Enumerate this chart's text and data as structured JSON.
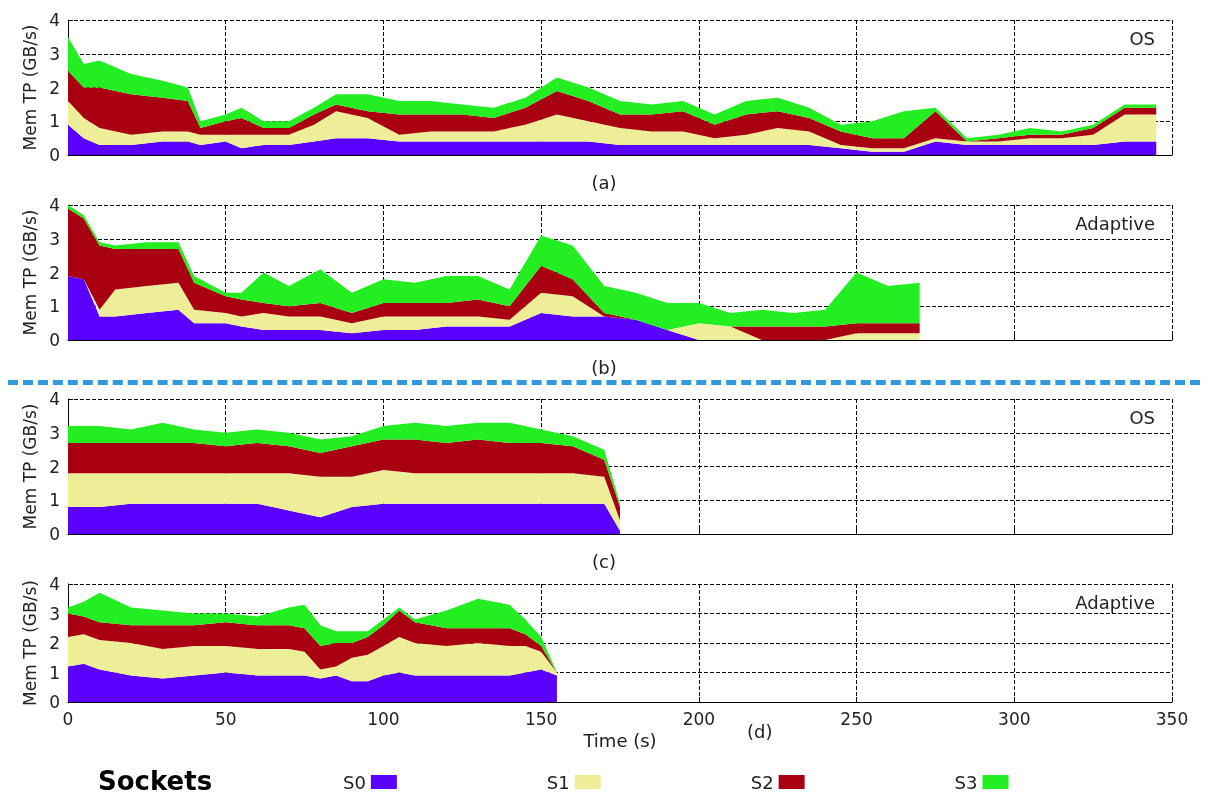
{
  "chart_data": [
    {
      "type": "area",
      "stacked": true,
      "title": "OS",
      "ylabel": "Mem TP (GB/s)",
      "annotations": [
        "(a)"
      ],
      "xlim": [
        0,
        350
      ],
      "xticks": [
        0,
        50,
        100,
        150,
        200,
        250,
        300,
        350
      ],
      "ylim": [
        0,
        4
      ],
      "yticks": [
        0,
        1,
        2,
        3,
        4
      ],
      "grid": true,
      "tick_labels": "y",
      "x": [
        0,
        5,
        10,
        20,
        30,
        38,
        42,
        50,
        55,
        62,
        70,
        78,
        85,
        95,
        105,
        115,
        125,
        135,
        145,
        155,
        165,
        175,
        185,
        195,
        205,
        215,
        225,
        235,
        245,
        255,
        265,
        275,
        285,
        295,
        305,
        315,
        325,
        335,
        345
      ],
      "series": [
        {
          "color": "#5a00ff",
          "values": [
            0.9,
            0.5,
            0.3,
            0.3,
            0.4,
            0.4,
            0.3,
            0.4,
            0.2,
            0.3,
            0.3,
            0.4,
            0.5,
            0.5,
            0.4,
            0.4,
            0.4,
            0.4,
            0.4,
            0.4,
            0.4,
            0.3,
            0.3,
            0.3,
            0.3,
            0.3,
            0.3,
            0.3,
            0.2,
            0.1,
            0.1,
            0.4,
            0.3,
            0.3,
            0.3,
            0.3,
            0.3,
            0.4,
            0.4
          ]
        },
        {
          "color": "#eeee99",
          "values": [
            0.7,
            0.6,
            0.5,
            0.3,
            0.3,
            0.3,
            0.3,
            0.2,
            0.4,
            0.3,
            0.3,
            0.5,
            0.8,
            0.6,
            0.2,
            0.3,
            0.3,
            0.3,
            0.5,
            0.8,
            0.6,
            0.5,
            0.4,
            0.4,
            0.2,
            0.3,
            0.5,
            0.4,
            0.1,
            0.1,
            0.1,
            0.1,
            0.1,
            0.1,
            0.2,
            0.2,
            0.3,
            0.8,
            0.8
          ]
        },
        {
          "color": "#a80010",
          "values": [
            0.9,
            0.9,
            1.2,
            1.2,
            1.0,
            0.9,
            0.2,
            0.4,
            0.5,
            0.2,
            0.2,
            0.3,
            0.2,
            0.2,
            0.6,
            0.5,
            0.5,
            0.4,
            0.5,
            0.7,
            0.6,
            0.4,
            0.5,
            0.6,
            0.4,
            0.6,
            0.5,
            0.4,
            0.4,
            0.3,
            0.3,
            0.8,
            0.0,
            0.1,
            0.1,
            0.1,
            0.2,
            0.2,
            0.2
          ]
        },
        {
          "color": "#22ee22",
          "values": [
            1.0,
            0.7,
            0.8,
            0.6,
            0.5,
            0.4,
            0.2,
            0.2,
            0.3,
            0.2,
            0.2,
            0.2,
            0.3,
            0.5,
            0.4,
            0.4,
            0.3,
            0.3,
            0.3,
            0.4,
            0.4,
            0.4,
            0.3,
            0.3,
            0.3,
            0.4,
            0.4,
            0.3,
            0.2,
            0.5,
            0.8,
            0.1,
            0.1,
            0.1,
            0.2,
            0.1,
            0.1,
            0.1,
            0.1
          ]
        }
      ]
    },
    {
      "type": "area",
      "stacked": true,
      "title": "Adaptive",
      "ylabel": "Mem TP (GB/s)",
      "annotations": [
        "(b)"
      ],
      "xlim": [
        0,
        350
      ],
      "xticks": [
        0,
        50,
        100,
        150,
        200,
        250,
        300,
        350
      ],
      "ylim": [
        0,
        4
      ],
      "yticks": [
        0,
        1,
        2,
        3,
        4
      ],
      "grid": true,
      "tick_labels": "y",
      "x": [
        0,
        5,
        10,
        15,
        25,
        35,
        40,
        50,
        55,
        62,
        70,
        80,
        90,
        100,
        110,
        120,
        130,
        140,
        150,
        160,
        170,
        180,
        190,
        200,
        210,
        220,
        230,
        240,
        250,
        260,
        270
      ],
      "series": [
        {
          "color": "#5a00ff",
          "values": [
            1.9,
            1.8,
            0.7,
            0.7,
            0.8,
            0.9,
            0.5,
            0.5,
            0.4,
            0.3,
            0.3,
            0.3,
            0.2,
            0.3,
            0.3,
            0.4,
            0.4,
            0.4,
            0.8,
            0.7,
            0.7,
            0.6,
            0.3,
            0,
            0,
            0,
            0,
            0,
            0,
            0,
            0
          ]
        },
        {
          "color": "#eeee99",
          "values": [
            null,
            null,
            0.2,
            0.8,
            0.8,
            0.8,
            0.4,
            0.3,
            0.3,
            0.5,
            0.4,
            0.4,
            0.3,
            0.4,
            0.4,
            0.3,
            0.3,
            0.2,
            0.6,
            0.6,
            0,
            0,
            0,
            0.5,
            0.4,
            0,
            0,
            0,
            0.2,
            0.2,
            0.2
          ]
        },
        {
          "color": "#a80010",
          "values": [
            2.0,
            1.8,
            1.9,
            1.2,
            1.1,
            1.0,
            0.8,
            0.5,
            0.5,
            0.3,
            0.3,
            0.4,
            0.3,
            0.4,
            0.4,
            0.4,
            0.5,
            0.4,
            0.8,
            0.5,
            0.1,
            0,
            0,
            0,
            0,
            0.4,
            0.4,
            0.4,
            0.3,
            0.3,
            0.3
          ]
        },
        {
          "color": "#22ee22",
          "values": [
            0.1,
            0.1,
            0.1,
            0.1,
            0.2,
            0.2,
            0.2,
            0.1,
            0.2,
            0.9,
            0.6,
            1.0,
            0.6,
            0.7,
            0.6,
            0.8,
            0.7,
            0.5,
            0.9,
            1.0,
            0.8,
            0.8,
            0.8,
            0.6,
            0.4,
            0.5,
            0.4,
            0.5,
            1.5,
            1.1,
            1.2
          ]
        }
      ]
    },
    {
      "type": "area",
      "stacked": true,
      "title": "OS",
      "ylabel": "Mem TP (GB/s)",
      "annotations": [
        "(c)"
      ],
      "xlim": [
        0,
        350
      ],
      "xticks": [
        0,
        50,
        100,
        150,
        200,
        250,
        300,
        350
      ],
      "ylim": [
        0,
        4
      ],
      "yticks": [
        0,
        1,
        2,
        3,
        4
      ],
      "grid": true,
      "tick_labels": "y",
      "x": [
        0,
        10,
        20,
        30,
        40,
        50,
        60,
        70,
        80,
        90,
        100,
        110,
        120,
        130,
        140,
        150,
        160,
        170,
        175
      ],
      "series": [
        {
          "color": "#5a00ff",
          "values": [
            0.8,
            0.8,
            0.9,
            0.9,
            0.9,
            0.9,
            0.9,
            0.7,
            0.5,
            0.8,
            0.9,
            0.9,
            0.9,
            0.9,
            0.9,
            0.9,
            0.9,
            0.9,
            0.1
          ]
        },
        {
          "color": "#eeee99",
          "values": [
            1.0,
            1.0,
            0.9,
            0.9,
            0.9,
            0.9,
            0.9,
            1.1,
            1.2,
            0.9,
            1.0,
            0.9,
            0.9,
            0.9,
            0.9,
            0.9,
            0.9,
            0.8,
            0.3
          ]
        },
        {
          "color": "#a80010",
          "values": [
            0.9,
            0.9,
            0.9,
            0.9,
            0.9,
            0.8,
            0.9,
            0.8,
            0.7,
            0.9,
            0.9,
            1.0,
            0.9,
            1.0,
            0.9,
            0.9,
            0.8,
            0.5,
            0.4
          ]
        },
        {
          "color": "#22ee22",
          "values": [
            0.5,
            0.5,
            0.4,
            0.6,
            0.4,
            0.4,
            0.4,
            0.4,
            0.4,
            0.3,
            0.4,
            0.5,
            0.5,
            0.5,
            0.6,
            0.4,
            0.3,
            0.3,
            0.1
          ]
        }
      ]
    },
    {
      "type": "area",
      "stacked": true,
      "title": "Adaptive",
      "ylabel": "Mem TP (GB/s)",
      "xlabel": "Time (s)",
      "annotations": [
        "(d)"
      ],
      "legend": "bottom",
      "legend_title": "Sockets",
      "xlim": [
        0,
        350
      ],
      "xticks": [
        0,
        50,
        100,
        150,
        200,
        250,
        300,
        350
      ],
      "ylim": [
        0,
        4
      ],
      "yticks": [
        0,
        1,
        2,
        3,
        4
      ],
      "grid": true,
      "x": [
        0,
        5,
        10,
        20,
        30,
        40,
        50,
        60,
        70,
        75,
        80,
        85,
        90,
        95,
        100,
        105,
        110,
        120,
        130,
        140,
        145,
        150,
        155
      ],
      "series": [
        {
          "name": "S0",
          "color": "#5a00ff",
          "values": [
            1.2,
            1.3,
            1.1,
            0.9,
            0.8,
            0.9,
            1.0,
            0.9,
            0.9,
            0.9,
            0.8,
            0.9,
            0.7,
            0.7,
            0.9,
            1.0,
            0.9,
            0.9,
            0.9,
            0.9,
            1.0,
            1.1,
            0.9
          ]
        },
        {
          "name": "S1",
          "color": "#eeee99",
          "values": [
            1.0,
            1.0,
            1.0,
            1.1,
            1.0,
            1.0,
            0.9,
            0.9,
            0.9,
            0.8,
            0.3,
            0.3,
            0.8,
            0.9,
            1.0,
            1.2,
            1.1,
            1.0,
            1.1,
            1.0,
            0.9,
            0.6,
            0.1
          ]
        },
        {
          "name": "S2",
          "color": "#a80010",
          "values": [
            0.8,
            0.6,
            0.6,
            0.6,
            0.8,
            0.7,
            0.8,
            0.8,
            0.8,
            0.8,
            0.8,
            0.8,
            0.5,
            0.6,
            0.7,
            0.9,
            0.7,
            0.6,
            0.5,
            0.6,
            0.4,
            0.2,
            0.0
          ]
        },
        {
          "name": "S3",
          "color": "#22ee22",
          "values": [
            0.2,
            0.5,
            1.0,
            0.6,
            0.5,
            0.4,
            0.3,
            0.3,
            0.6,
            0.8,
            0.7,
            0.4,
            0.4,
            0.2,
            0.2,
            0.1,
            0.1,
            0.6,
            1.0,
            0.8,
            0.5,
            0.3,
            0.0
          ]
        }
      ]
    }
  ]
}
